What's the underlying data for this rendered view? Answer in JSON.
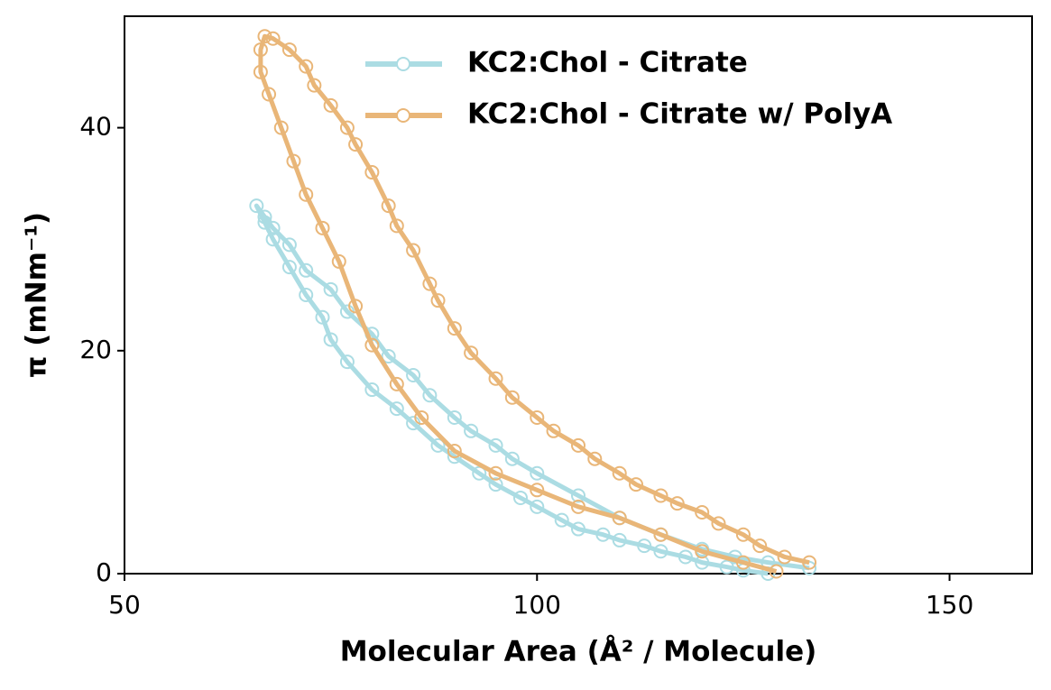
{
  "chart_data": {
    "type": "line",
    "xlabel": "Molecular Area (Å² / Molecule)",
    "ylabel": "π (mNm⁻¹)",
    "xlim": [
      50,
      160
    ],
    "xticks": [
      50,
      100,
      150
    ],
    "ylim": [
      0,
      50
    ],
    "yticks": [
      0,
      20,
      40
    ],
    "legend": "upper center",
    "series": [
      {
        "name": "KC2:Chol - Citrate",
        "color": "#abdce3",
        "x": [
          133,
          128,
          124,
          120,
          115,
          110,
          105,
          100,
          97,
          95,
          92,
          90,
          87,
          85,
          82,
          80,
          77,
          75,
          72,
          70,
          68,
          67,
          66,
          67,
          68,
          70,
          72,
          74,
          75,
          77,
          80,
          83,
          85,
          88,
          90,
          93,
          95,
          98,
          100,
          103,
          105,
          108,
          110,
          113,
          115,
          118,
          120,
          123,
          125,
          128
        ],
        "values": [
          0.5,
          1,
          1.5,
          2.2,
          3.5,
          5,
          7,
          9,
          10.3,
          11.5,
          12.8,
          14,
          16,
          17.8,
          19.5,
          21.5,
          23.5,
          25.5,
          27.2,
          29.5,
          31,
          32,
          33,
          31.5,
          30,
          27.5,
          25,
          23,
          21,
          19,
          16.5,
          14.8,
          13.5,
          11.5,
          10.5,
          9,
          8,
          6.8,
          6,
          4.8,
          4,
          3.5,
          3,
          2.5,
          2,
          1.5,
          1,
          0.6,
          0.3,
          0
        ]
      },
      {
        "name": "KC2:Chol - Citrate w/ PolyA",
        "color": "#e9b678",
        "x": [
          133,
          130,
          127,
          125,
          122,
          120,
          117,
          115,
          112,
          110,
          107,
          105,
          102,
          100,
          97,
          95,
          92,
          90,
          88,
          87,
          85,
          83,
          82,
          80,
          78,
          77,
          75,
          73,
          72,
          70,
          68,
          67,
          66.5,
          66.5,
          67.5,
          69,
          70.5,
          72,
          74,
          76,
          78,
          80,
          83,
          86,
          90,
          95,
          100,
          105,
          110,
          115,
          120,
          125,
          129
        ],
        "values": [
          1,
          1.5,
          2.5,
          3.5,
          4.5,
          5.5,
          6.3,
          7,
          8,
          9,
          10.3,
          11.5,
          12.8,
          14,
          15.8,
          17.5,
          19.8,
          22,
          24.5,
          26,
          29,
          31.2,
          33,
          36,
          38.5,
          40,
          42,
          43.8,
          45.5,
          47,
          48,
          48.2,
          47,
          45,
          43,
          40,
          37,
          34,
          31,
          28,
          24,
          20.5,
          17,
          14,
          11,
          9,
          7.5,
          6,
          5,
          3.5,
          2,
          1,
          0.2
        ]
      }
    ]
  }
}
